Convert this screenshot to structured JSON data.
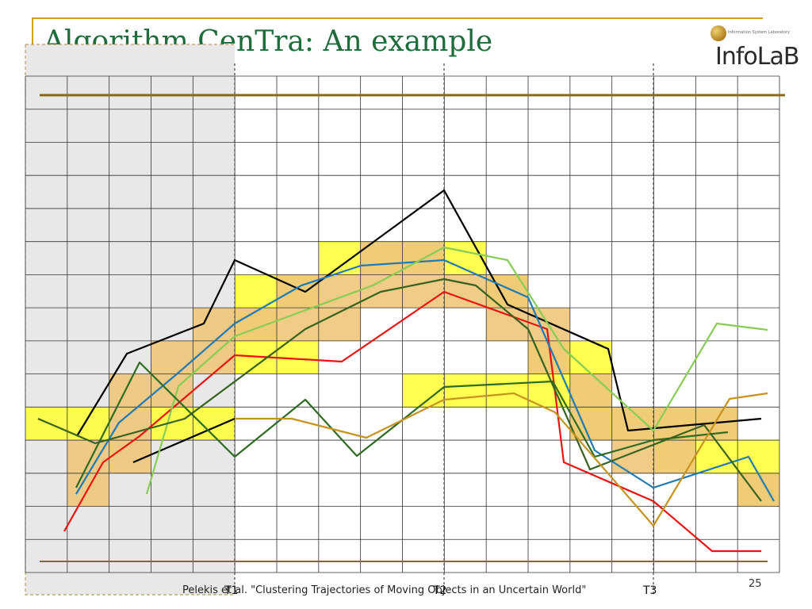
{
  "slide": {
    "title": "Algorithm CenTra: An example",
    "footer": "Pelekis et al. \"Clustering Trajectories of Moving Objects in an Uncertain World\"",
    "page_number": "25",
    "time_labels": [
      "T1",
      "T2",
      "T3"
    ]
  },
  "logo": {
    "text": "InfoLaB",
    "tagline": "Information System Laboratory"
  },
  "colors": {
    "accent_gold": "#d4a017",
    "rule_brown": "#8b6914",
    "title_green": "#1e6b3c",
    "region_yellow": "#ffff33",
    "region_orange": "#f0c77a",
    "shade_gray": "#e8e8e8"
  },
  "trajectories": [
    {
      "color": "#000000",
      "points": [
        [
          97,
          550
        ],
        [
          160,
          446
        ],
        [
          257,
          408
        ],
        [
          296,
          328
        ],
        [
          385,
          368
        ],
        [
          560,
          240
        ],
        [
          640,
          384
        ],
        [
          767,
          440
        ],
        [
          792,
          543
        ],
        [
          960,
          528
        ]
      ]
    },
    {
      "color": "#000000",
      "points": [
        [
          168,
          583
        ],
        [
          296,
          528
        ]
      ]
    },
    {
      "color": "#ee1111",
      "points": [
        [
          81,
          670
        ],
        [
          130,
          583
        ],
        [
          176,
          550
        ],
        [
          296,
          448
        ],
        [
          431,
          456
        ],
        [
          560,
          368
        ],
        [
          690,
          415
        ],
        [
          711,
          583
        ],
        [
          824,
          632
        ],
        [
          898,
          695
        ],
        [
          960,
          695
        ]
      ]
    },
    {
      "color": "#1f7ab5",
      "points": [
        [
          96,
          623
        ],
        [
          150,
          533
        ],
        [
          225,
          470
        ],
        [
          296,
          408
        ],
        [
          380,
          360
        ],
        [
          455,
          335
        ],
        [
          560,
          328
        ],
        [
          666,
          375
        ],
        [
          750,
          568
        ],
        [
          824,
          615
        ],
        [
          944,
          576
        ],
        [
          976,
          632
        ]
      ]
    },
    {
      "color": "#88cc55",
      "points": [
        [
          185,
          623
        ],
        [
          225,
          487
        ],
        [
          296,
          424
        ],
        [
          470,
          360
        ],
        [
          560,
          312
        ],
        [
          640,
          328
        ],
        [
          711,
          440
        ],
        [
          824,
          543
        ],
        [
          904,
          408
        ],
        [
          968,
          416
        ]
      ]
    },
    {
      "color": "#2f6b22",
      "points": [
        [
          96,
          615
        ],
        [
          176,
          457
        ],
        [
          296,
          576
        ],
        [
          385,
          504
        ],
        [
          450,
          575
        ],
        [
          560,
          488
        ],
        [
          697,
          481
        ],
        [
          750,
          576
        ],
        [
          824,
          555
        ],
        [
          918,
          545
        ]
      ]
    },
    {
      "color": "#38621f",
      "points": [
        [
          48,
          528
        ],
        [
          120,
          559
        ],
        [
          233,
          528
        ],
        [
          385,
          415
        ],
        [
          480,
          368
        ],
        [
          560,
          352
        ],
        [
          600,
          360
        ],
        [
          666,
          415
        ],
        [
          744,
          592
        ],
        [
          888,
          536
        ],
        [
          960,
          632
        ]
      ]
    },
    {
      "color": "#c8921e",
      "points": [
        [
          296,
          528
        ],
        [
          368,
          528
        ],
        [
          462,
          552
        ],
        [
          560,
          504
        ],
        [
          648,
          496
        ],
        [
          700,
          520
        ],
        [
          824,
          663
        ],
        [
          920,
          503
        ],
        [
          968,
          496
        ]
      ]
    }
  ]
}
